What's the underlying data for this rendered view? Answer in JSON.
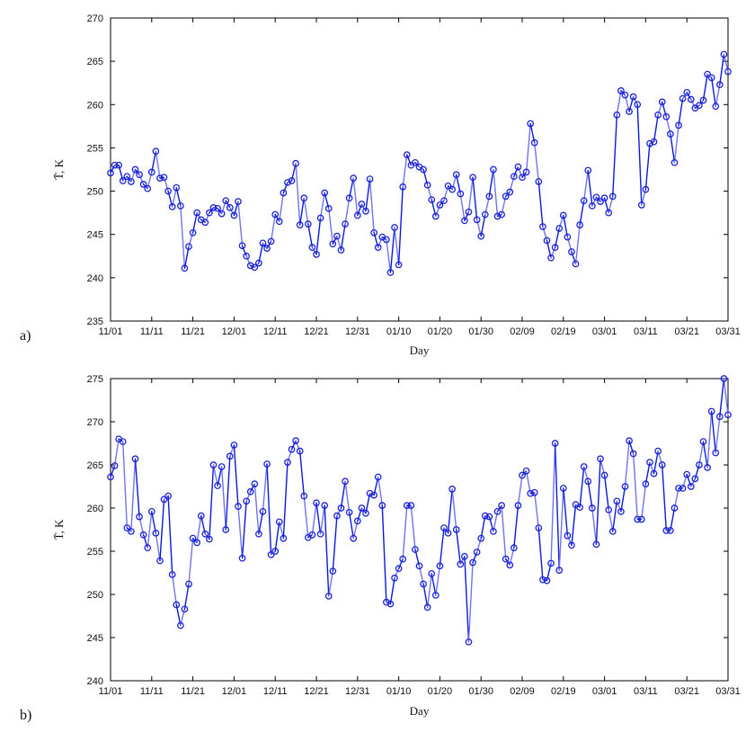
{
  "colors": {
    "line_dark": "#0a1adc",
    "line_light": "#6f74ee",
    "marker": "#1a22d8",
    "axis": "#000000"
  },
  "chart_data": [
    {
      "type": "line",
      "panel_label": "a)",
      "xlabel": "Day",
      "ylabel": "T̄, K",
      "ylim": [
        235,
        270
      ],
      "yticks": [
        235,
        240,
        245,
        250,
        255,
        260,
        265,
        270
      ],
      "xlim": [
        0,
        150
      ],
      "xticks": [
        0,
        10,
        20,
        30,
        40,
        50,
        60,
        70,
        80,
        90,
        100,
        110,
        120,
        130,
        140,
        150
      ],
      "xtick_labels": [
        "11/01",
        "11/11",
        "11/21",
        "12/01",
        "12/11",
        "12/21",
        "12/31",
        "01/10",
        "01/20",
        "01/30",
        "02/09",
        "02/19",
        "03/01",
        "03/11",
        "03/21",
        "03/31"
      ],
      "grid": false,
      "series": [
        {
          "x_start": 0,
          "x_step": 1,
          "values": [
            252.1,
            253.0,
            253.0,
            251.2,
            251.7,
            251.1,
            252.5,
            251.9,
            250.8,
            250.3,
            252.2,
            254.6,
            251.5,
            251.6,
            250.0,
            248.2,
            250.4,
            248.3,
            241.1,
            243.6,
            245.2,
            247.5,
            246.7,
            246.4,
            247.5,
            248.1,
            248.0,
            247.4,
            248.9,
            248.1,
            247.2,
            248.8,
            243.7,
            242.5,
            241.4,
            241.2,
            241.7,
            244.0,
            243.4,
            244.2,
            247.3,
            246.5,
            249.8,
            251.0,
            251.2,
            253.2,
            246.1,
            249.2,
            246.2,
            243.5,
            242.7,
            246.9,
            249.8,
            248.0,
            243.9,
            244.8,
            243.2,
            246.2,
            249.2,
            251.5,
            247.2,
            248.5,
            247.7,
            251.4,
            245.2,
            243.5,
            244.7,
            244.4,
            240.6,
            245.8,
            241.5,
            250.5,
            254.2,
            253.0,
            253.3,
            252.8,
            252.5,
            250.7,
            249.0,
            247.1,
            248.4,
            248.9,
            250.6,
            250.2,
            251.9,
            249.7,
            246.6,
            247.6,
            251.6,
            246.7,
            244.8,
            247.3,
            249.4,
            252.5,
            247.1,
            247.3,
            249.4,
            249.9,
            251.7,
            252.8,
            251.6,
            252.2,
            257.8,
            255.6,
            251.1,
            245.9,
            244.3,
            242.3,
            243.5,
            245.7,
            247.2,
            244.7,
            243.0,
            241.6,
            246.1,
            248.9,
            252.4,
            248.3,
            249.3,
            248.8,
            249.2,
            247.5,
            249.4,
            258.8,
            261.6,
            261.1,
            259.2,
            260.9,
            260.0,
            248.4,
            250.2,
            255.5,
            255.7,
            258.8,
            260.3,
            258.6,
            256.6,
            253.3,
            257.6,
            260.7,
            261.4,
            260.6,
            259.6,
            259.9,
            260.5,
            263.5,
            263.1,
            259.8,
            262.3,
            265.8,
            263.8
          ]
        }
      ]
    },
    {
      "type": "line",
      "panel_label": "b)",
      "xlabel": "Day",
      "ylabel": "T̄, K",
      "ylim": [
        240,
        275
      ],
      "yticks": [
        240,
        245,
        250,
        255,
        260,
        265,
        270,
        275
      ],
      "xlim": [
        0,
        150
      ],
      "xticks": [
        0,
        10,
        20,
        30,
        40,
        50,
        60,
        70,
        80,
        90,
        100,
        110,
        120,
        130,
        140,
        150
      ],
      "xtick_labels": [
        "11/01",
        "11/11",
        "11/21",
        "12/01",
        "12/11",
        "12/21",
        "12/31",
        "01/10",
        "01/20",
        "01/30",
        "02/09",
        "02/19",
        "03/01",
        "03/11",
        "03/21",
        "03/31"
      ],
      "grid": false,
      "series": [
        {
          "x_start": 0,
          "x_step": 1,
          "values": [
            263.6,
            264.9,
            268.0,
            267.7,
            257.7,
            257.3,
            265.7,
            259.0,
            256.9,
            255.4,
            259.6,
            257.1,
            253.9,
            261.0,
            261.4,
            252.3,
            248.8,
            246.4,
            248.3,
            251.2,
            256.5,
            256.0,
            259.1,
            257.0,
            256.4,
            265.0,
            262.6,
            264.8,
            257.5,
            266.0,
            267.3,
            260.2,
            254.2,
            260.8,
            261.9,
            262.8,
            257.0,
            259.6,
            265.1,
            254.6,
            255.0,
            258.4,
            256.5,
            265.3,
            266.8,
            267.8,
            266.6,
            261.4,
            256.6,
            256.9,
            260.6,
            257.0,
            260.3,
            249.8,
            252.7,
            259.1,
            260.0,
            263.1,
            259.5,
            256.5,
            258.5,
            260.0,
            259.4,
            261.7,
            261.5,
            263.6,
            260.3,
            249.1,
            248.9,
            251.9,
            253.0,
            254.1,
            260.3,
            260.3,
            255.2,
            253.3,
            251.2,
            248.5,
            252.4,
            249.9,
            253.3,
            257.7,
            257.1,
            262.2,
            257.5,
            253.5,
            254.4,
            244.5,
            253.7,
            254.9,
            256.5,
            259.1,
            259.0,
            257.3,
            259.6,
            260.3,
            254.1,
            253.4,
            255.4,
            260.3,
            263.8,
            264.3,
            261.7,
            261.8,
            257.7,
            251.7,
            251.6,
            253.6,
            267.5,
            252.8,
            262.3,
            256.8,
            255.7,
            260.4,
            260.1,
            264.8,
            263.1,
            260.0,
            255.8,
            265.7,
            263.8,
            259.8,
            257.3,
            260.8,
            259.6,
            262.5,
            267.8,
            266.3,
            258.7,
            258.7,
            262.8,
            265.3,
            264.0,
            266.6,
            265.0,
            257.4,
            257.4,
            260.0,
            262.3,
            262.3,
            263.9,
            262.5,
            263.4,
            265.0,
            267.7,
            264.7,
            271.2,
            266.4,
            270.6,
            275.0,
            270.8
          ]
        }
      ]
    }
  ]
}
